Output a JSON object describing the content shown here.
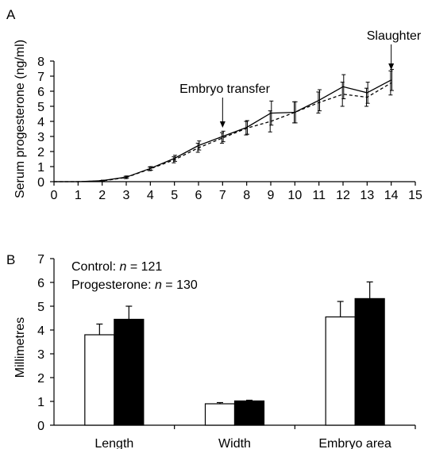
{
  "chart_data": [
    {
      "panel_label": "A",
      "type": "line",
      "ylabel": "Serum progesterone (ng/ml)",
      "xlabel": "",
      "xlim": [
        0,
        15
      ],
      "ylim": [
        0,
        8
      ],
      "xticks": [
        "0",
        "1",
        "2",
        "3",
        "4",
        "5",
        "6",
        "7",
        "8",
        "9",
        "10",
        "11",
        "12",
        "13",
        "14",
        "15"
      ],
      "yticks": [
        "0",
        "1",
        "2",
        "3",
        "4",
        "5",
        "6",
        "7",
        "8"
      ],
      "grid": false,
      "x": [
        0,
        1,
        2,
        3,
        4,
        5,
        6,
        7,
        8,
        9,
        10,
        11,
        12,
        13,
        14
      ],
      "series": [
        {
          "style": "solid",
          "values": [
            0,
            0,
            0.07,
            0.3,
            0.88,
            1.55,
            2.4,
            3.0,
            3.6,
            4.55,
            4.6,
            5.4,
            6.3,
            5.9,
            6.75
          ],
          "error": [
            0,
            0,
            0.03,
            0.08,
            0.12,
            0.2,
            0.3,
            0.35,
            0.45,
            0.8,
            0.7,
            0.7,
            0.8,
            0.7,
            0.7
          ]
        },
        {
          "style": "dashed",
          "values": [
            0,
            0,
            0.05,
            0.28,
            0.85,
            1.45,
            2.25,
            2.9,
            3.55,
            4.0,
            4.6,
            5.25,
            5.8,
            5.6,
            6.55
          ],
          "error": [
            0,
            0,
            0.03,
            0.08,
            0.12,
            0.2,
            0.3,
            0.35,
            0.45,
            0.7,
            0.7,
            0.7,
            0.8,
            0.6,
            0.8
          ]
        }
      ],
      "annotations": [
        {
          "text": "Embryo transfer",
          "x": 7
        },
        {
          "text": "Slaughter",
          "x": 14
        }
      ]
    },
    {
      "panel_label": "B",
      "type": "bar",
      "ylabel": "Millimetres",
      "xlabel": "",
      "ylim": [
        0,
        7
      ],
      "yticks": [
        "0",
        "1",
        "2",
        "3",
        "4",
        "5",
        "6",
        "7"
      ],
      "grid": false,
      "categories": [
        "Length",
        "Width",
        "Embryo area"
      ],
      "series": [
        {
          "color": "#ffffff",
          "values": [
            3.8,
            0.9,
            4.55
          ],
          "error": [
            0.45,
            0.05,
            0.65
          ]
        },
        {
          "color": "#000000",
          "values": [
            4.45,
            1.02,
            5.32
          ],
          "error": [
            0.55,
            0.03,
            0.7
          ]
        }
      ],
      "legend_lines": [
        {
          "prefix": "Control: ",
          "n": "n",
          "suffix": " = 121"
        },
        {
          "prefix": "Progesterone: ",
          "n": "n",
          "suffix": " = 130"
        }
      ]
    }
  ]
}
